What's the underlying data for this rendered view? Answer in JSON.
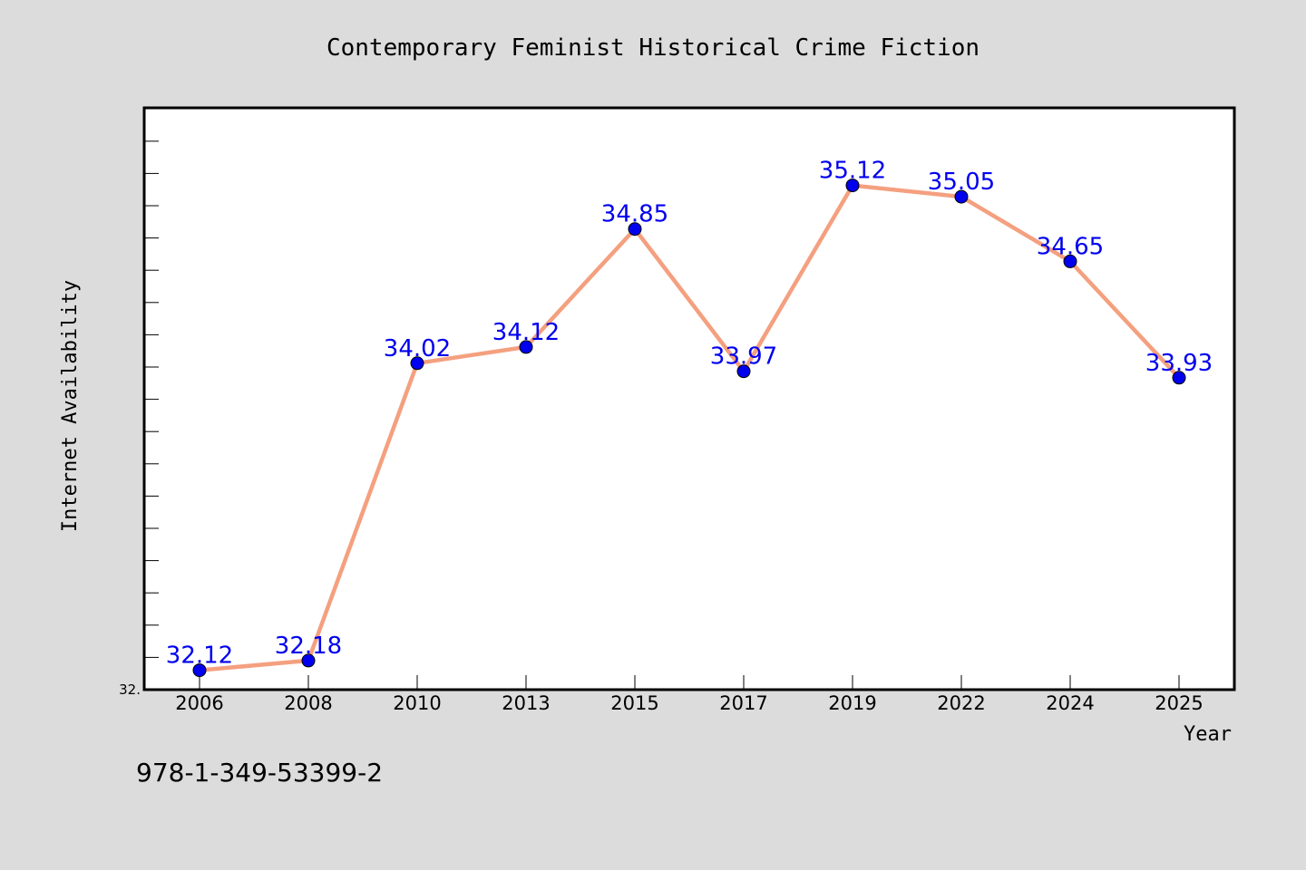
{
  "chart_data": {
    "type": "line",
    "title": "Contemporary Feminist Historical Crime Fiction",
    "xlabel": "Year",
    "ylabel": "Internet Availability",
    "categories": [
      "2006",
      "2008",
      "2010",
      "2013",
      "2015",
      "2017",
      "2019",
      "2022",
      "2024",
      "2025"
    ],
    "series": [
      {
        "values": [
          32.12,
          32.18,
          34.02,
          34.12,
          34.85,
          33.97,
          35.12,
          35.05,
          34.65,
          33.93
        ],
        "data_labels": [
          "32.12",
          "32.18",
          "34.02",
          "34.12",
          "34.85",
          "33.97",
          "35.12",
          "35.05",
          "34.65",
          "33.93"
        ],
        "line_color": "#f4a07f",
        "marker_color": "#0000ee"
      }
    ],
    "ylim": [
      32.0,
      35.6
    ],
    "ytick_label": "32.",
    "grid": false,
    "legend": "none"
  },
  "footer_code": "978-1-349-53399-2",
  "colors": {
    "background": "#dcdcdc",
    "plot_area": "#ffffff",
    "data_label": "#0000ee"
  }
}
